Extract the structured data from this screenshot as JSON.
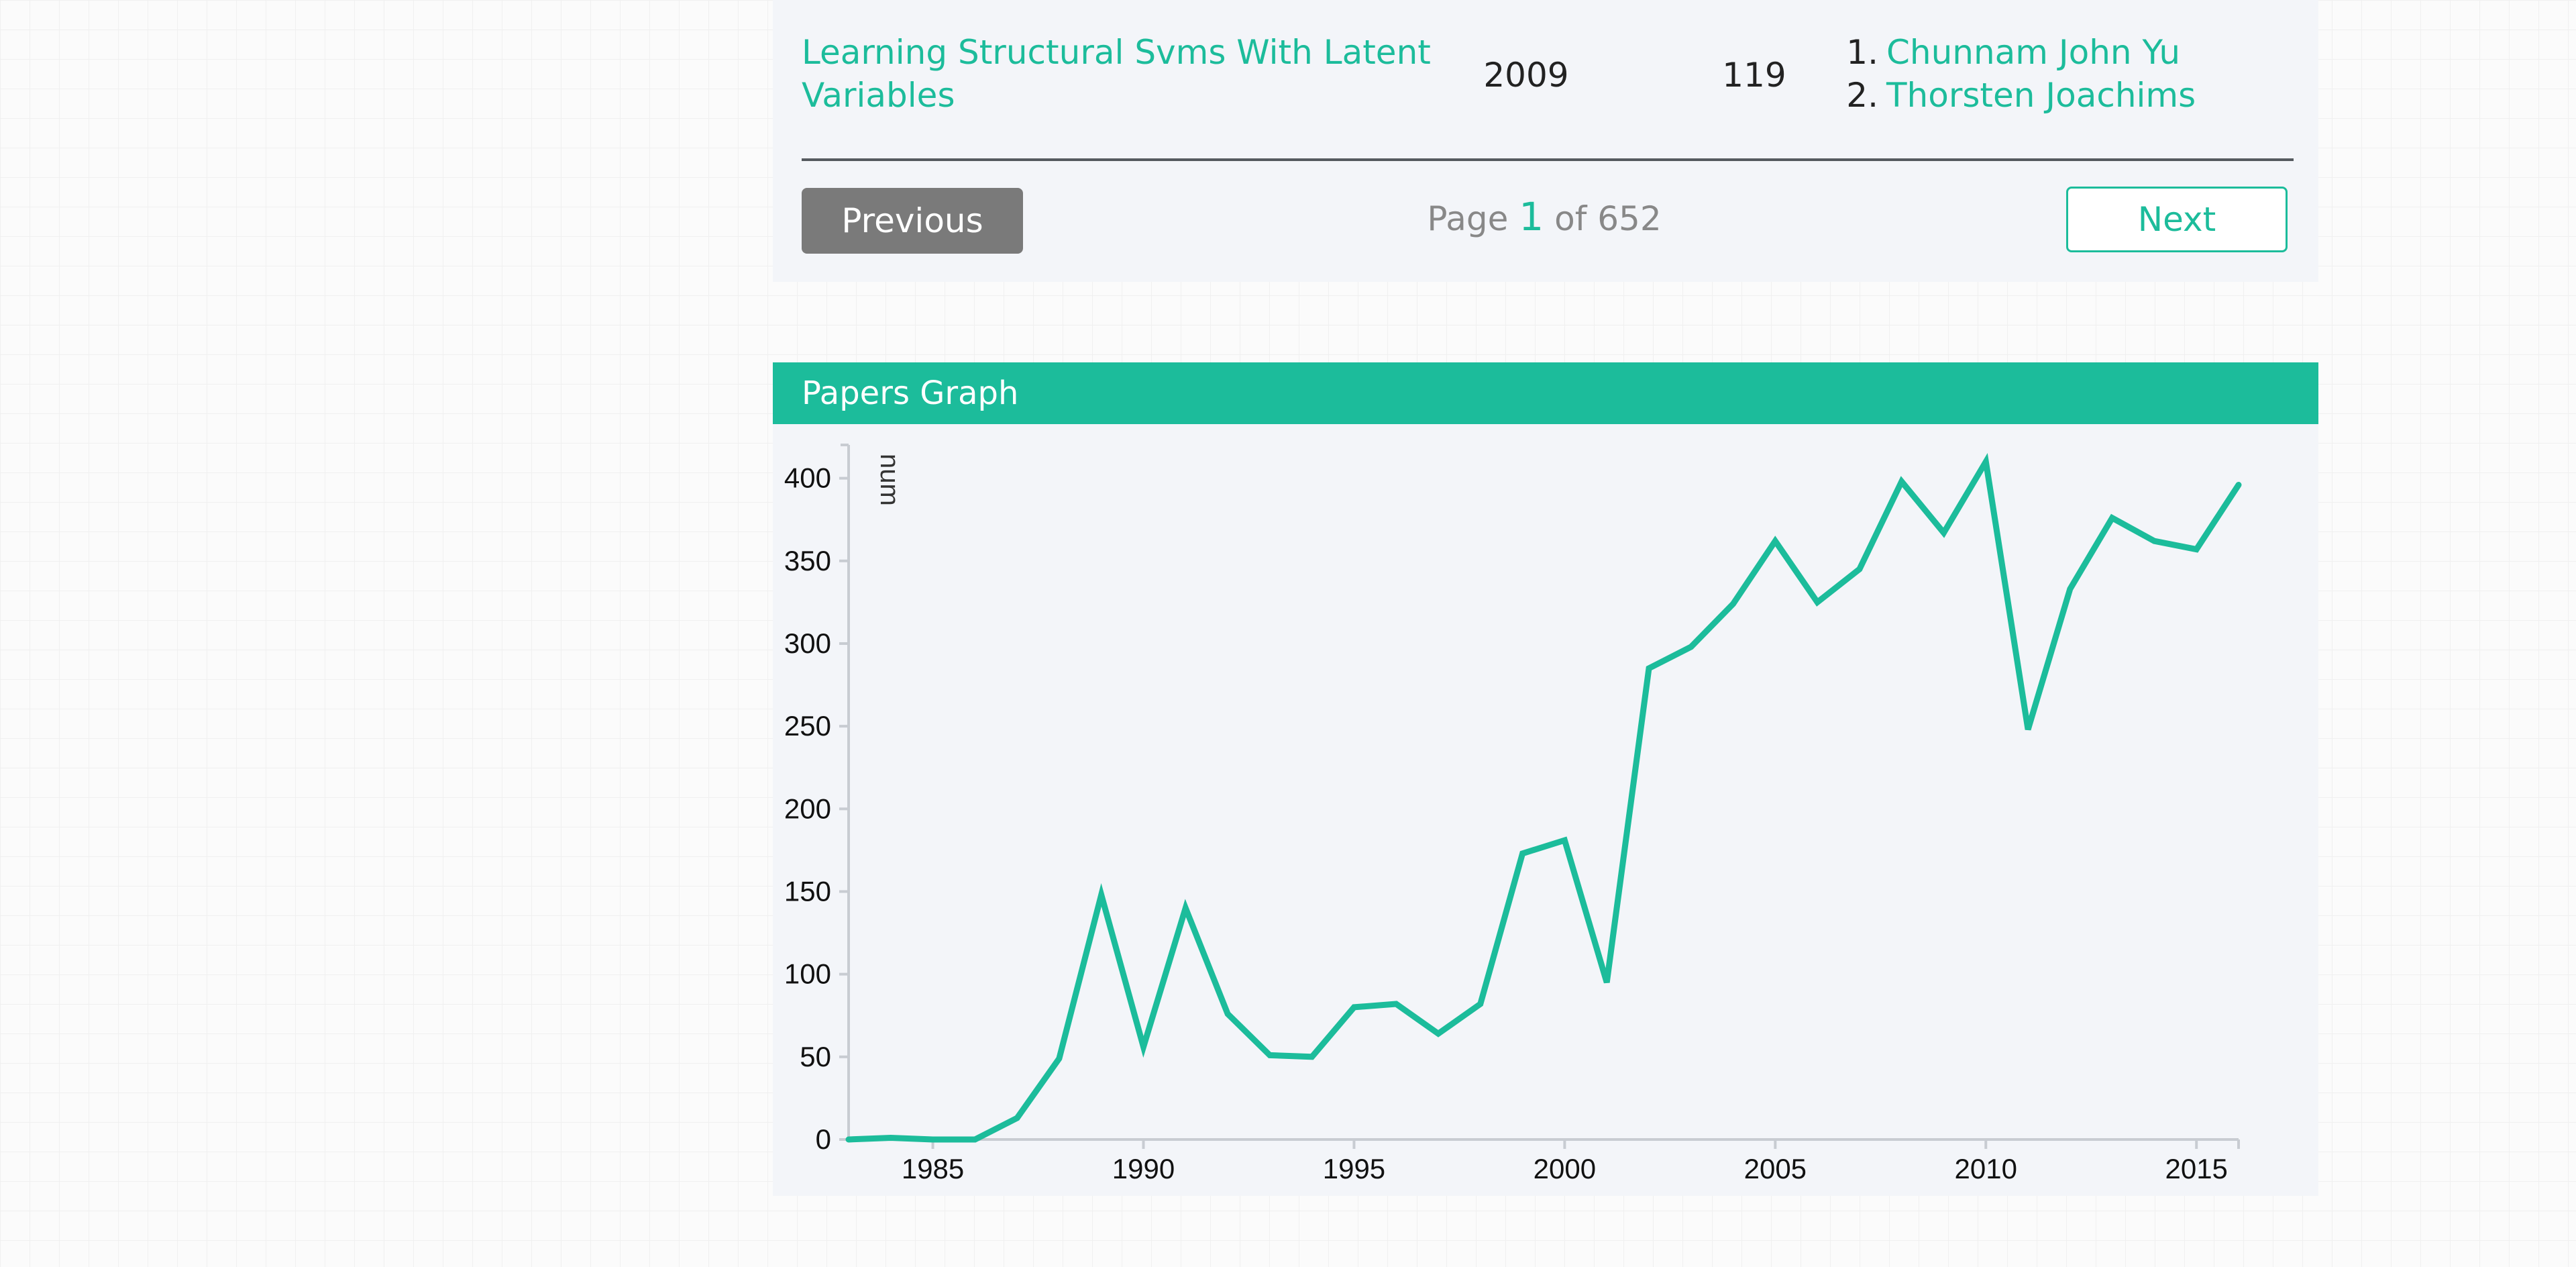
{
  "papers_table": {
    "rows": [
      {
        "title": "Learning Structural Svms With Latent Variables",
        "year": "2009",
        "citations": "119",
        "authors": [
          {
            "index": "1.",
            "name": "Chunnam John Yu"
          },
          {
            "index": "2.",
            "name": "Thorsten Joachims"
          }
        ]
      }
    ]
  },
  "pagination": {
    "previous_label": "Previous",
    "next_label": "Next",
    "page_prefix": "Page",
    "current_page": "1",
    "page_middle": "of",
    "total_pages": "652"
  },
  "graph": {
    "title": "Papers Graph"
  },
  "colors": {
    "accent": "#1cbc9b",
    "button_gray": "#7a7a7a",
    "panel_bg": "#f3f5f9"
  },
  "chart_data": {
    "type": "line",
    "title": "",
    "xlabel": "",
    "ylabel": "num",
    "xlim": [
      1983,
      2016
    ],
    "ylim": [
      0,
      410
    ],
    "xticks": [
      1985,
      1990,
      1995,
      2000,
      2005,
      2010,
      2015
    ],
    "yticks": [
      0,
      50,
      100,
      150,
      200,
      250,
      300,
      350,
      400
    ],
    "grid": false,
    "legend": "none",
    "series": [
      {
        "x": [
          1983,
          1984,
          1985,
          1986,
          1987,
          1988,
          1989,
          1990,
          1991,
          1992,
          1993,
          1994,
          1995,
          1996,
          1997,
          1998,
          1999,
          2000,
          2001,
          2002,
          2003,
          2004,
          2005,
          2006,
          2007,
          2008,
          2009,
          2010,
          2011,
          2012,
          2013,
          2014,
          2015,
          2016
        ],
        "values": [
          0,
          1,
          0,
          0,
          13,
          49,
          148,
          56,
          140,
          76,
          51,
          50,
          80,
          82,
          64,
          82,
          173,
          181,
          95,
          285,
          298,
          324,
          362,
          325,
          345,
          398,
          367,
          410,
          248,
          333,
          376,
          362,
          357,
          396
        ]
      }
    ]
  }
}
